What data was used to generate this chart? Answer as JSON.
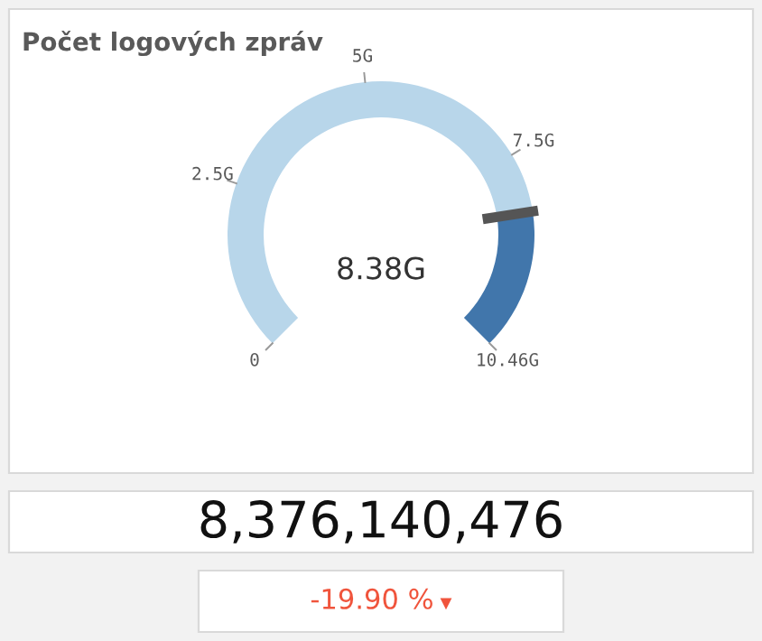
{
  "chart_data": {
    "type": "donut",
    "title": "Počet logových zpráv",
    "categories": [
      null,
      null
    ],
    "values": [
      80.1,
      19.9
    ],
    "colors": [
      "#b8d6ea",
      "#4176ab"
    ],
    "annotations": [
      "0",
      "2.5G",
      "5G",
      "7.5G",
      "10.46G",
      "8.38G",
      "8,376,140,476",
      "-19.90 %"
    ]
  }
}
